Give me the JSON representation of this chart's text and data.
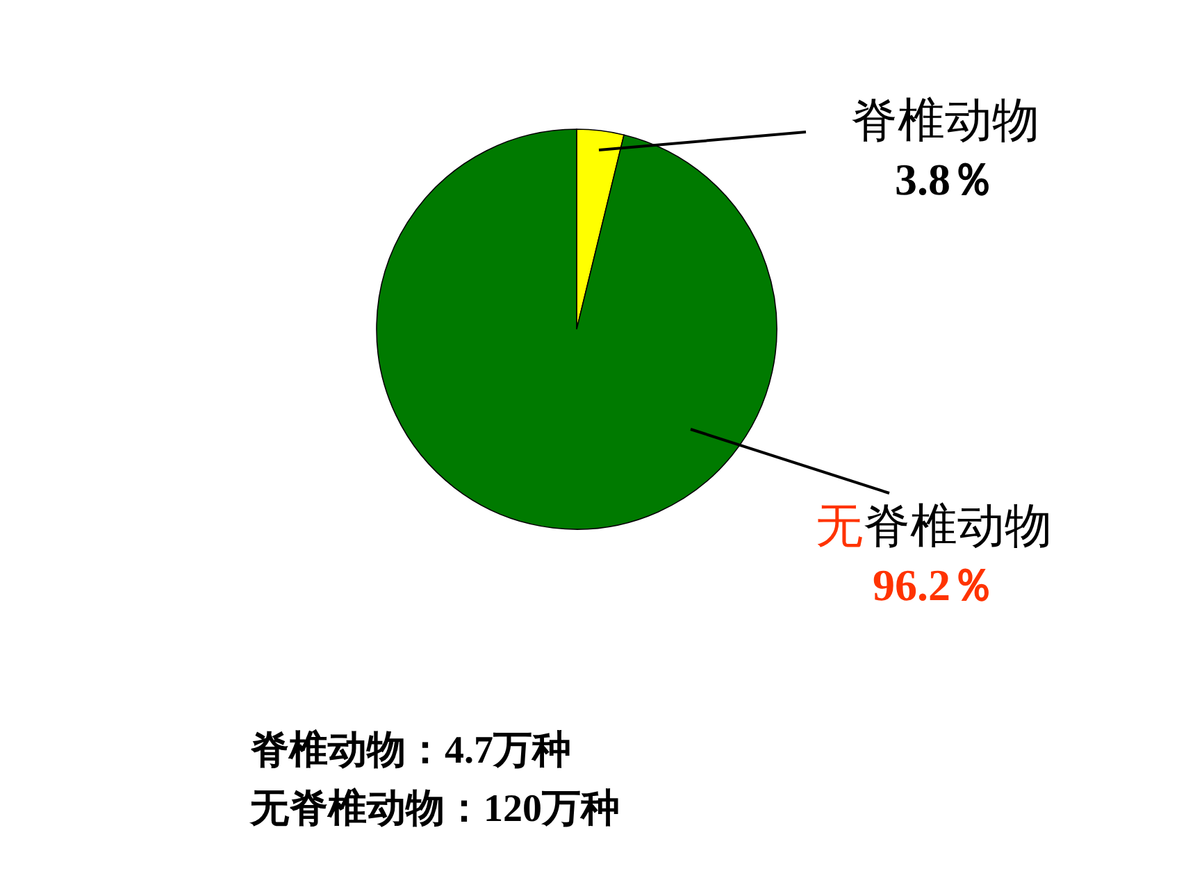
{
  "chart_data": {
    "type": "pie",
    "categories": [
      "脊椎动物",
      "无脊椎动物"
    ],
    "values": [
      3.8,
      96.2
    ],
    "colors": [
      "#ffff00",
      "#007a00"
    ],
    "value_labels": [
      "3.8％",
      "96.2％"
    ],
    "annotations": [
      "脊椎动物：4.7万种",
      "无脊椎动物：120万种"
    ]
  }
}
